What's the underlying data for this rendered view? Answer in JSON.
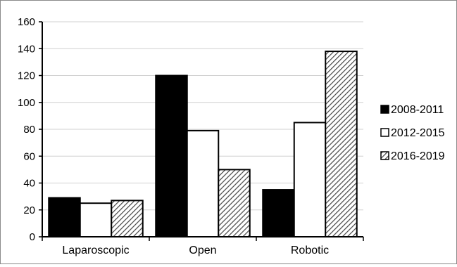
{
  "chart_data": {
    "type": "bar",
    "categories": [
      "Laparoscopic",
      "Open",
      "Robotic"
    ],
    "series": [
      {
        "name": "2008-2011",
        "values": [
          29,
          120,
          35
        ],
        "fill": "#000000"
      },
      {
        "name": "2012-2015",
        "values": [
          25,
          79,
          85
        ],
        "fill": "#ffffff"
      },
      {
        "name": "2016-2019",
        "values": [
          27,
          50,
          138
        ],
        "fill": "hatch"
      }
    ],
    "ylim": [
      0,
      160
    ],
    "yticks": [
      "0",
      "20",
      "40",
      "60",
      "80",
      "100",
      "120",
      "140",
      "160"
    ],
    "grid": true,
    "legend": "right",
    "colors": {
      "bar_stroke": "#000000",
      "grid": "#d0d0d0",
      "hatch": "#555555"
    }
  }
}
